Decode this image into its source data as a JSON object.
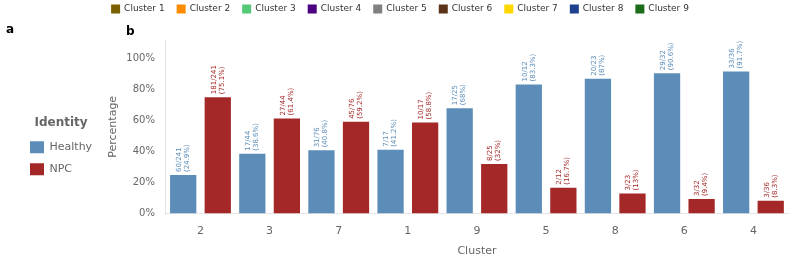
{
  "chart_data": {
    "type": "bar",
    "categories": [
      "2",
      "3",
      "7",
      "1",
      "9",
      "5",
      "8",
      "6",
      "4"
    ],
    "series": [
      {
        "name": "Healthy",
        "color": "#5B8DB8",
        "values": [
          24.9,
          38.6,
          40.8,
          41.2,
          68.0,
          83.3,
          87.0,
          90.6,
          91.7
        ],
        "value_labels": [
          "60/241\n(24.9%)",
          "17/44\n(38.6%)",
          "31/76\n(40.8%)",
          "7/17\n(41.2%)",
          "17/25\n(68%)",
          "10/12\n(83.3%)",
          "20/23\n(87%)",
          "29/32\n(90.6%)",
          "33/36\n(91.7%)"
        ]
      },
      {
        "name": "NPC",
        "color": "#A52828",
        "values": [
          75.1,
          61.4,
          59.2,
          58.8,
          32.0,
          16.7,
          13.0,
          9.4,
          8.3
        ],
        "value_labels": [
          "181/241\n(75.1%)",
          "27/44\n(61.4%)",
          "45/76\n(59.2%)",
          "10/17\n(58.8%)",
          "8/25\n(32%)",
          "2/12\n(16.7%)",
          "3/23\n(13%)",
          "3/32\n(9.4%)",
          "3/36\n(8.3%)"
        ]
      }
    ],
    "xlabel": "Cluster",
    "ylabel": "Percentage",
    "ylim": [
      0,
      112
    ],
    "yticks": [
      {
        "value": 0,
        "label": "0%"
      },
      {
        "value": 20,
        "label": "20%"
      },
      {
        "value": 40,
        "label": "40%"
      },
      {
        "value": 60,
        "label": "60%"
      },
      {
        "value": 80,
        "label": "80%"
      },
      {
        "value": 100,
        "label": "100%"
      }
    ],
    "grid": false,
    "legend": "left",
    "legend_title": "Identity",
    "data_labels": true,
    "annotations": [
      {
        "text": "a"
      },
      {
        "text": "b"
      },
      {
        "text": "Cluster 1",
        "color": "#7B6000"
      },
      {
        "text": "Cluster 2",
        "color": "#FF8C00"
      },
      {
        "text": "Cluster 3",
        "color": "#55C878"
      },
      {
        "text": "Cluster 4",
        "color": "#4B0082"
      },
      {
        "text": "Cluster 5",
        "color": "#808080"
      },
      {
        "text": "Cluster 6",
        "color": "#5C3317"
      },
      {
        "text": "Cluster 7",
        "color": "#FFD700"
      },
      {
        "text": "Cluster 8",
        "color": "#1F3F8F"
      },
      {
        "text": "Cluster 9",
        "color": "#1A6B1A"
      }
    ]
  }
}
